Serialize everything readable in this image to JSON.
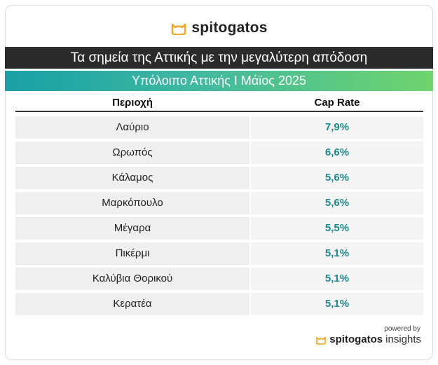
{
  "brand": {
    "logo_text": "spitogatos",
    "icon": "cat-icon",
    "accent": "#f5a623"
  },
  "header": {
    "title": "Τα σημεία της Αττικής με την μεγαλύτερη απόδοση",
    "subtitle": "Υπόλοιπο Αττικής Ι Μάϊος 2025"
  },
  "table": {
    "col_region": "Περιοχή",
    "col_cap": "Cap Rate",
    "rows": [
      {
        "region": "Λαύριο",
        "cap": "7,9%"
      },
      {
        "region": "Ωρωπός",
        "cap": "6,6%"
      },
      {
        "region": "Κάλαμος",
        "cap": "5,6%"
      },
      {
        "region": "Μαρκόπουλο",
        "cap": "5,6%"
      },
      {
        "region": "Μέγαρα",
        "cap": "5,5%"
      },
      {
        "region": "Πικέρμι",
        "cap": "5,1%"
      },
      {
        "region": "Καλύβια Θορικού",
        "cap": "5,1%"
      },
      {
        "region": "Κερατέα",
        "cap": "5,1%"
      }
    ]
  },
  "footer": {
    "powered_by": "powered by",
    "brand": "spitogatos",
    "product": "insights"
  },
  "chart_data": {
    "type": "table",
    "columns": [
      "Περιοχή",
      "Cap Rate"
    ],
    "rows": [
      [
        "Λαύριο",
        "7,9%"
      ],
      [
        "Ωρωπός",
        "6,6%"
      ],
      [
        "Κάλαμος",
        "5,6%"
      ],
      [
        "Μαρκόπουλο",
        "5,6%"
      ],
      [
        "Μέγαρα",
        "5,5%"
      ],
      [
        "Πικέρμι",
        "5,1%"
      ],
      [
        "Καλύβια Θορικού",
        "5,1%"
      ],
      [
        "Κερατέα",
        "5,1%"
      ]
    ],
    "title": "Τα σημεία της Αττικής με την μεγαλύτερη απόδοση",
    "subtitle": "Υπόλοιπο Αττικής Ι Μάϊος 2025"
  }
}
